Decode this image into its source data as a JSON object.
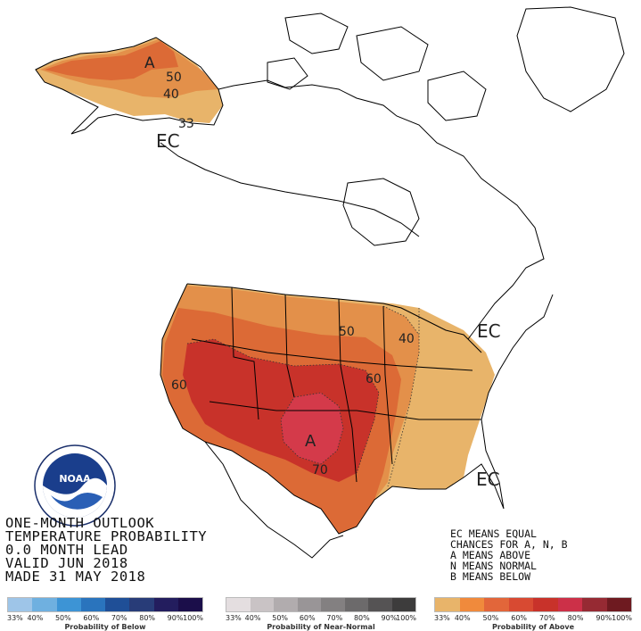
{
  "outlook": {
    "line1": "ONE-MONTH OUTLOOK",
    "line2": "TEMPERATURE PROBABILITY",
    "line3": "0.0 MONTH LEAD",
    "line4": "VALID JUN 2018",
    "line5": "MADE 31 MAY 2018"
  },
  "legend_note": {
    "line1": "EC MEANS EQUAL",
    "line2": "CHANCES FOR A, N, B",
    "line3": "A MEANS ABOVE",
    "line4": "N MEANS NORMAL",
    "line5": "B MEANS BELOW"
  },
  "map_labels": {
    "ak_a": "A",
    "ak_50": "50",
    "ak_40": "40",
    "ak_33": "33",
    "ec_alaska": "EC",
    "ec_northeast": "EC",
    "ec_southeast": "EC",
    "conus_a": "A",
    "c50": "50",
    "c40": "40",
    "c60_west": "60",
    "c60_central": "60",
    "c70": "70"
  },
  "colors": {
    "above_33": "#e8b46a",
    "above_40": "#e3904a",
    "above_50": "#dc6a36",
    "above_60": "#c8322a",
    "above_70": "#d43a4a",
    "land_outline": "#000000"
  },
  "legends": {
    "below": {
      "title": "Probability of Below",
      "colors": [
        "#9ec5e8",
        "#6fb0e0",
        "#3d94d5",
        "#2a74bd",
        "#1f4f97",
        "#283c78",
        "#231d5e",
        "#1b0e4a"
      ],
      "ticks": [
        "33%",
        "40%",
        "50%",
        "60%",
        "70%",
        "80%",
        "90%",
        "100%"
      ]
    },
    "normal": {
      "title": "Probability of Near-Normal",
      "colors": [
        "#e4dee0",
        "#c9c3c5",
        "#b1acae",
        "#999597",
        "#838081",
        "#6c6a6b",
        "#555354",
        "#3d3c3c"
      ],
      "ticks": [
        "33%",
        "40%",
        "50%",
        "60%",
        "70%",
        "80%",
        "90%",
        "100%"
      ]
    },
    "above": {
      "title": "Probability of Above",
      "colors": [
        "#e8b46a",
        "#f08a3c",
        "#e2663a",
        "#d84a32",
        "#c8322a",
        "#cc3048",
        "#962a33",
        "#6e1a20"
      ],
      "ticks": [
        "33%",
        "40%",
        "50%",
        "60%",
        "70%",
        "80%",
        "90%",
        "100%"
      ]
    }
  },
  "logo": {
    "text": "NOAA"
  }
}
